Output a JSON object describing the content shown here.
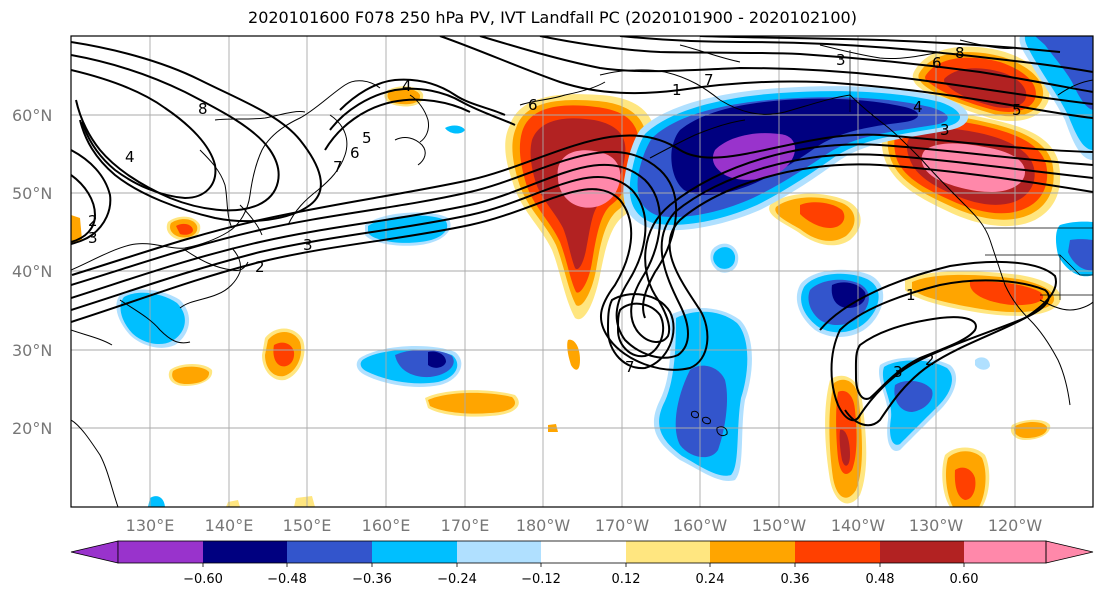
{
  "title": "2020101600 F078 250 hPa PV, IVT Landfall PC (2020101900 - 2020102100)",
  "map": {
    "lat_labels": [
      "60°N",
      "50°N",
      "40°N",
      "30°N",
      "20°N"
    ],
    "lon_labels": [
      "130°E",
      "140°E",
      "150°E",
      "160°E",
      "170°E",
      "180°W",
      "170°W",
      "160°W",
      "150°W",
      "140°W",
      "130°W",
      "120°W"
    ],
    "contour_labels": [
      "8",
      "4",
      "6",
      "7",
      "6",
      "5",
      "7",
      "3",
      "2",
      "1",
      "3",
      "2",
      "4",
      "7",
      "8",
      "6",
      "5",
      "4",
      "3",
      "3",
      "2",
      "1",
      "3"
    ]
  },
  "colorbar": {
    "colors": [
      "#9933cc",
      "#000080",
      "#3355cc",
      "#00bfff",
      "#b0e0ff",
      "#ffffff",
      "#ffe680",
      "#ffa500",
      "#ff4000",
      "#b22222",
      "#ff88aa"
    ],
    "tick_labels": [
      "−0.60",
      "−0.48",
      "−0.36",
      "−0.24",
      "−0.12",
      "0.12",
      "0.24",
      "0.36",
      "0.48",
      "0.60"
    ]
  }
}
